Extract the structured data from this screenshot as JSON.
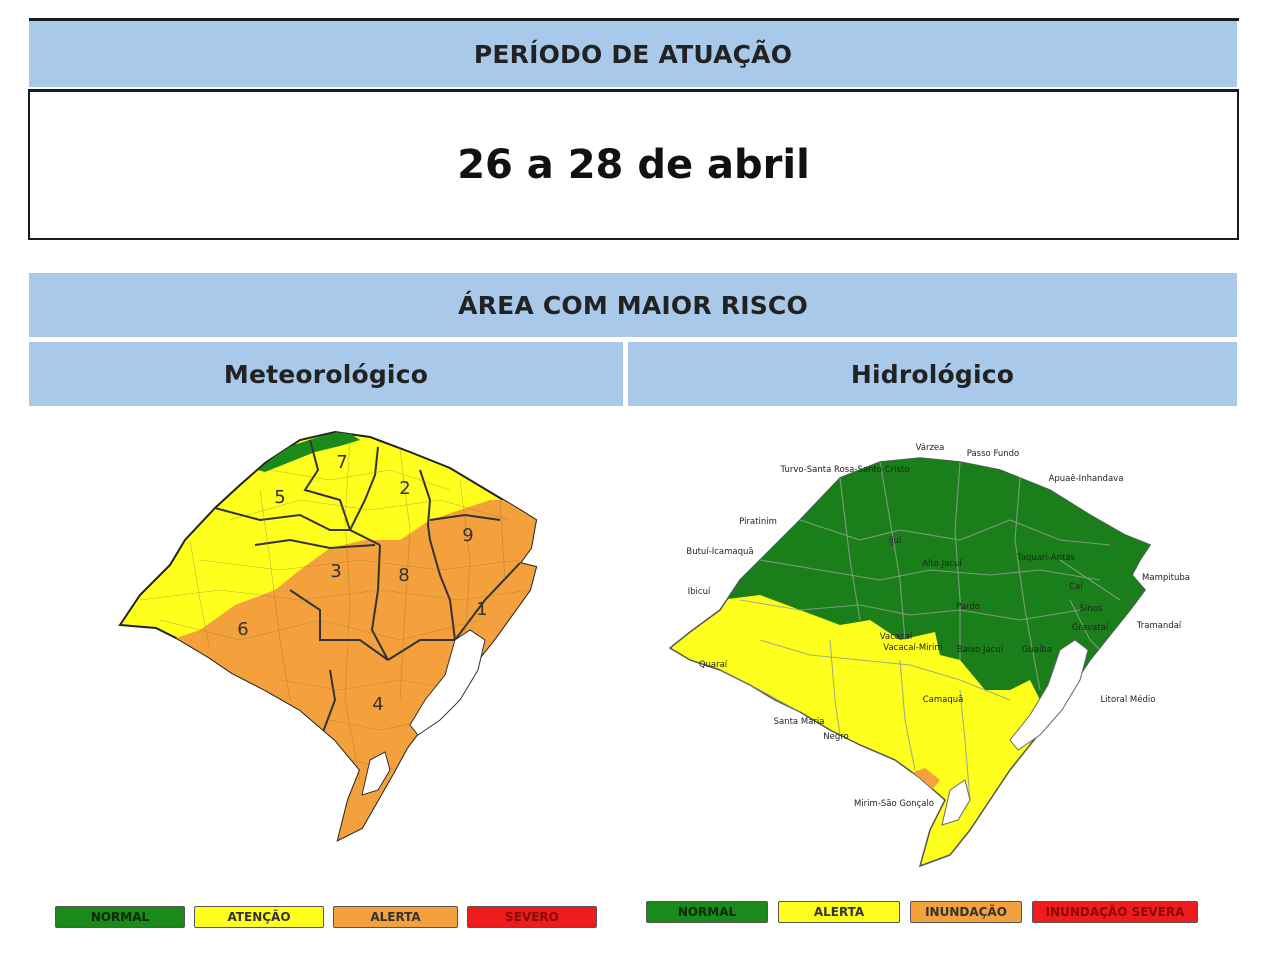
{
  "header": {
    "periodo_title": "PERÍODO DE ATUAÇÃO",
    "periodo_value": "26 a 28 de abril",
    "area_title": "ÁREA COM MAIOR RISCO",
    "meteo_title": "Meteorológico",
    "hidro_title": "Hidrológico"
  },
  "colors": {
    "header_band": "#a8c9ea",
    "normal": "#1a8a1a",
    "atencao": "#ffff1e",
    "alerta_meteo": "#f4a03c",
    "severo": "#ee1c1c",
    "alerta_hidro": "#ffff1e",
    "inundacao": "#f4a03c",
    "inundacao_severa": "#ee1c1c"
  },
  "meteo_map": {
    "region_numbers": [
      "7",
      "2",
      "5",
      "9",
      "3",
      "8",
      "1",
      "6",
      "4"
    ],
    "legend": [
      "NORMAL",
      "ATENÇÃO",
      "ALERTA",
      "SEVERO"
    ]
  },
  "hidro_map": {
    "basins": [
      "Várzea",
      "Passo Fundo",
      "Turvo-Santa Rosa-Santo Cristo",
      "Apuaê-Inhandava",
      "Piratinim",
      "Butuí-Icamaquã",
      "Ijuí",
      "Taquari-Antas",
      "Mampituba",
      "Alto Jacuí",
      "Ibicuí",
      "Caí",
      "Sinos",
      "Gravataí",
      "Pardo",
      "Tramandaí",
      "Vacacaí",
      "Vacacaí-Mirim",
      "Baixo Jacuí",
      "Guaíba",
      "Quaraí",
      "Camaquã",
      "Litoral Médio",
      "Santa Maria",
      "Negro",
      "Mirim-São Gonçalo"
    ],
    "legend": [
      "NORMAL",
      "ALERTA",
      "INUNDAÇÃO",
      "INUNDAÇÃO SEVERA"
    ]
  }
}
